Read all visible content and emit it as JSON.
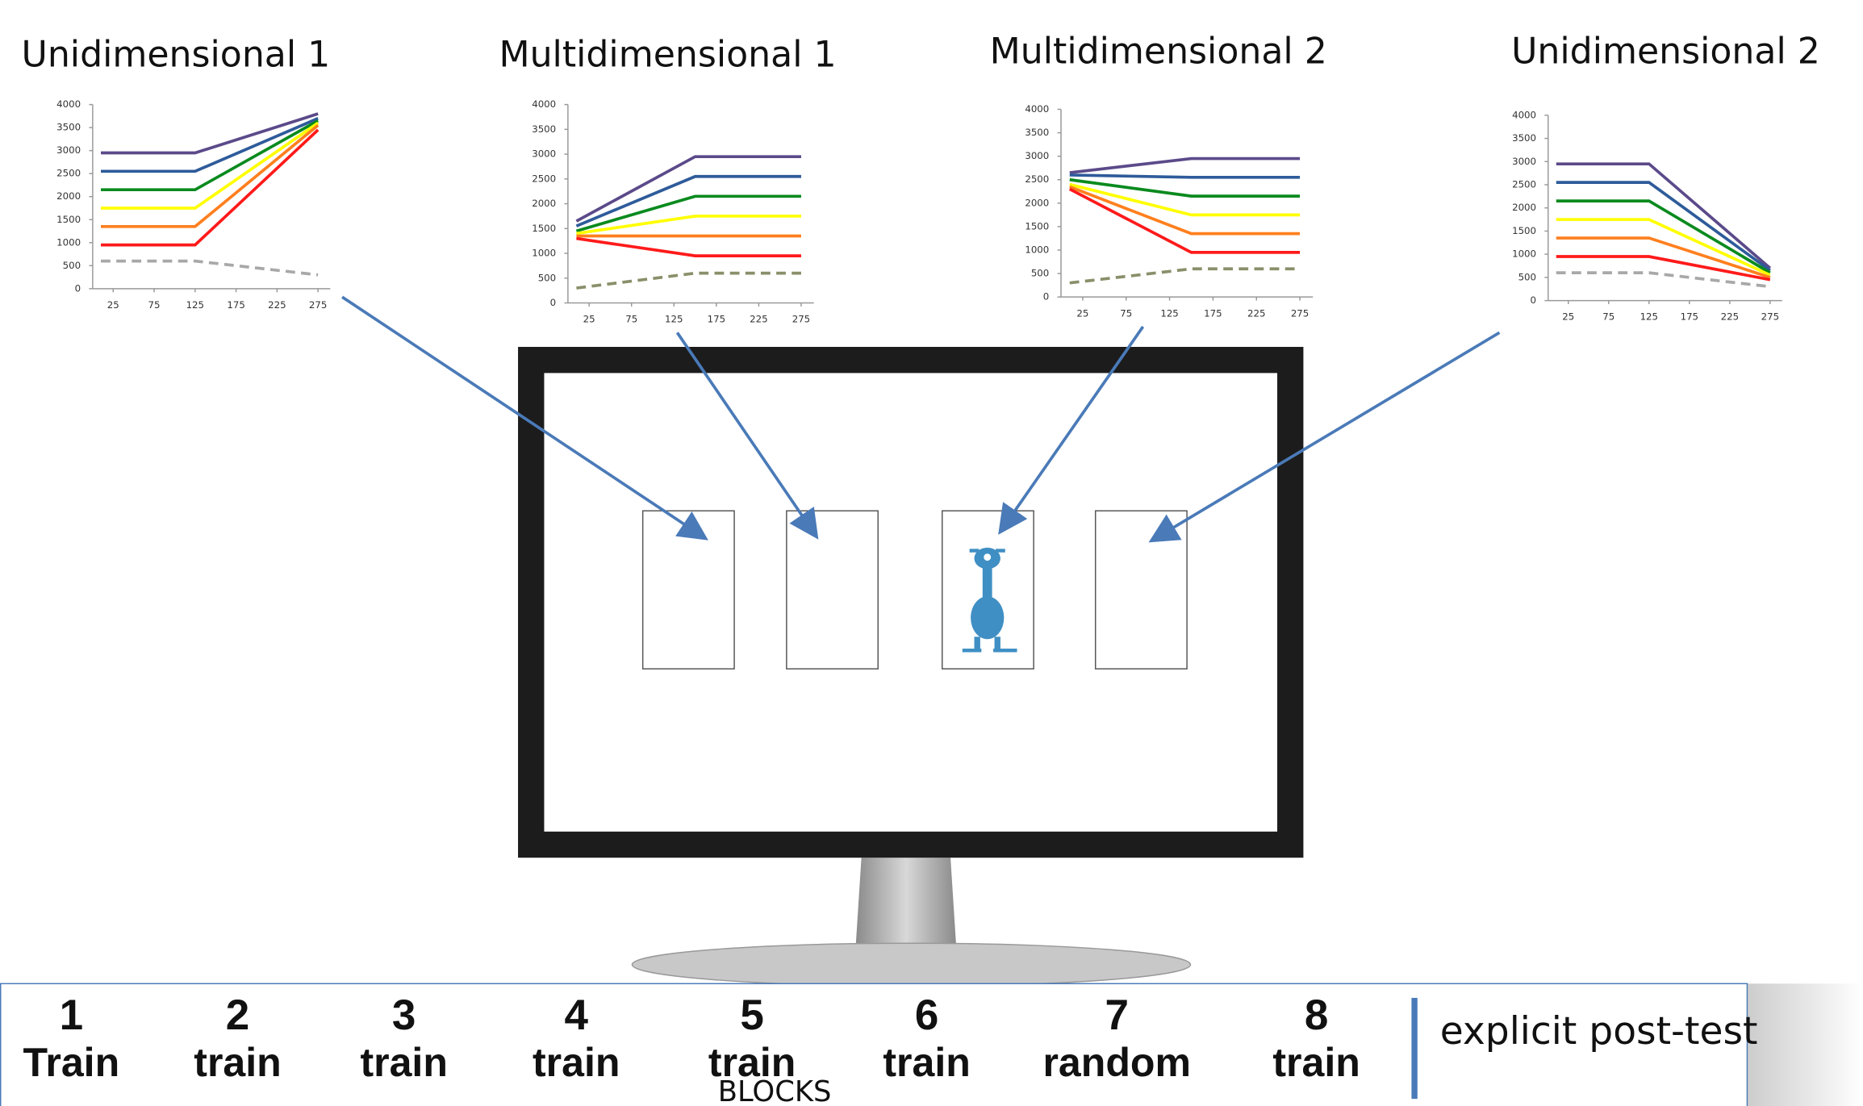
{
  "charts": [
    {
      "type": "line",
      "title": "Unidimensional 1",
      "x": [
        10,
        125,
        275
      ],
      "xlim": [
        0,
        290
      ],
      "ylim": [
        0,
        4000
      ],
      "xticks": [
        25,
        75,
        125,
        175,
        225,
        275
      ],
      "yticks": [
        0,
        500,
        1000,
        1500,
        2000,
        2500,
        3000,
        3500,
        4000
      ],
      "series": [
        {
          "color": "#5b4a8a",
          "values": [
            2950,
            2950,
            3800
          ]
        },
        {
          "color": "#2e5b9a",
          "values": [
            2550,
            2550,
            3700
          ]
        },
        {
          "color": "#0a8a1e",
          "values": [
            2150,
            2150,
            3650
          ]
        },
        {
          "color": "#ffff00",
          "values": [
            1750,
            1750,
            3600
          ]
        },
        {
          "color": "#ff7f1e",
          "values": [
            1350,
            1350,
            3550
          ]
        },
        {
          "color": "#ff1a1a",
          "values": [
            950,
            950,
            3450
          ]
        },
        {
          "color": "#a8a8a8",
          "values": [
            600,
            600,
            300
          ],
          "linestyle": "dashed"
        }
      ]
    },
    {
      "type": "line",
      "title": "Multidimensional 1",
      "x": [
        10,
        150,
        275
      ],
      "xlim": [
        0,
        290
      ],
      "ylim": [
        0,
        4000
      ],
      "xticks": [
        25,
        75,
        125,
        175,
        225,
        275
      ],
      "yticks": [
        0,
        500,
        1000,
        1500,
        2000,
        2500,
        3000,
        3500,
        4000
      ],
      "series": [
        {
          "color": "#5b4a8a",
          "values": [
            1650,
            2950,
            2950
          ]
        },
        {
          "color": "#2e5b9a",
          "values": [
            1550,
            2550,
            2550
          ]
        },
        {
          "color": "#0a8a1e",
          "values": [
            1450,
            2150,
            2150
          ]
        },
        {
          "color": "#ffff00",
          "values": [
            1400,
            1750,
            1750
          ]
        },
        {
          "color": "#ff7f1e",
          "values": [
            1350,
            1350,
            1350
          ]
        },
        {
          "color": "#ff1a1a",
          "values": [
            1300,
            950,
            950
          ]
        },
        {
          "color": "#8a8f6a",
          "values": [
            300,
            600,
            600
          ],
          "linestyle": "dashed"
        }
      ]
    },
    {
      "type": "line",
      "title": "Multidimensional 2",
      "x": [
        10,
        150,
        275
      ],
      "xlim": [
        0,
        290
      ],
      "ylim": [
        0,
        4000
      ],
      "xticks": [
        25,
        75,
        125,
        175,
        225,
        275
      ],
      "yticks": [
        0,
        500,
        1000,
        1500,
        2000,
        2500,
        3000,
        3500,
        4000
      ],
      "series": [
        {
          "color": "#5b4a8a",
          "values": [
            2650,
            2950,
            2950
          ]
        },
        {
          "color": "#2e5b9a",
          "values": [
            2600,
            2550,
            2550
          ]
        },
        {
          "color": "#0a8a1e",
          "values": [
            2500,
            2150,
            2150
          ]
        },
        {
          "color": "#ffff00",
          "values": [
            2400,
            1750,
            1750
          ]
        },
        {
          "color": "#ff7f1e",
          "values": [
            2350,
            1350,
            1350
          ]
        },
        {
          "color": "#ff1a1a",
          "values": [
            2300,
            950,
            950
          ]
        },
        {
          "color": "#8a8f6a",
          "values": [
            300,
            600,
            600
          ],
          "linestyle": "dashed"
        }
      ]
    },
    {
      "type": "line",
      "title": "Unidimensional 2",
      "x": [
        10,
        125,
        275
      ],
      "xlim": [
        0,
        290
      ],
      "ylim": [
        0,
        4000
      ],
      "xticks": [
        25,
        75,
        125,
        175,
        225,
        275
      ],
      "yticks": [
        0,
        500,
        1000,
        1500,
        2000,
        2500,
        3000,
        3500,
        4000
      ],
      "series": [
        {
          "color": "#5b4a8a",
          "values": [
            2950,
            2950,
            700
          ]
        },
        {
          "color": "#2e5b9a",
          "values": [
            2550,
            2550,
            650
          ]
        },
        {
          "color": "#0a8a1e",
          "values": [
            2150,
            2150,
            600
          ]
        },
        {
          "color": "#ffff00",
          "values": [
            1750,
            1750,
            550
          ]
        },
        {
          "color": "#ff7f1e",
          "values": [
            1350,
            1350,
            500
          ]
        },
        {
          "color": "#ff1a1a",
          "values": [
            950,
            950,
            450
          ]
        },
        {
          "color": "#a8a8a8",
          "values": [
            600,
            600,
            300
          ],
          "linestyle": "dashed"
        }
      ]
    }
  ],
  "blocks": [
    {
      "number": "1",
      "label": "Train"
    },
    {
      "number": "2",
      "label": "train"
    },
    {
      "number": "3",
      "label": "train"
    },
    {
      "number": "4",
      "label": "train"
    },
    {
      "number": "5",
      "label": "train"
    },
    {
      "number": "6",
      "label": "train"
    },
    {
      "number": "7",
      "label": "random"
    },
    {
      "number": "8",
      "label": "train"
    }
  ],
  "blocks_caption": "BLOCKS",
  "post_test": "explicit post-test"
}
